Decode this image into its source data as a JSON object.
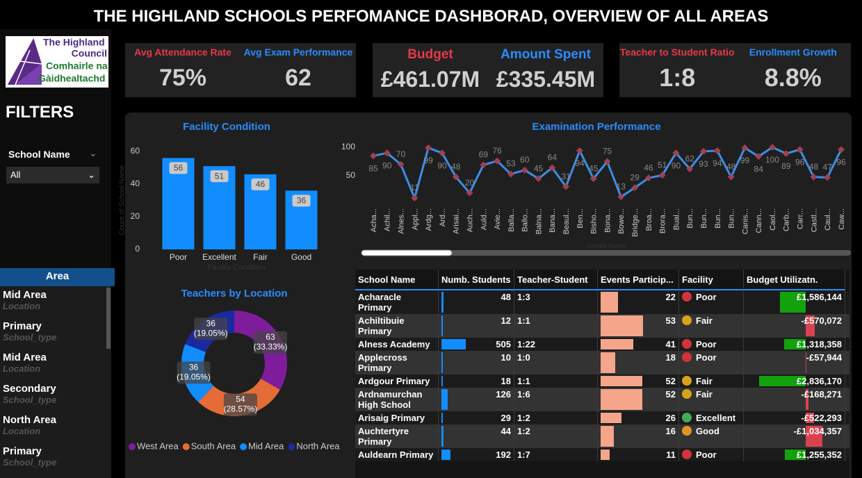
{
  "header": {
    "title": "THE HIGHLAND SCHOOLS PERFOMANCE DASHBORAD, OVERVIEW OF ALL AREAS"
  },
  "logo": {
    "lines": [
      "The Highland",
      "Council",
      "Comhairle na",
      "Gàidhealtachd"
    ]
  },
  "filters": {
    "title": "FILTERS",
    "label": "School Name",
    "value": "All"
  },
  "kpi_panels": [
    [
      {
        "label": "Avg Attendance Rate",
        "value": "75%",
        "color": "#e8394a"
      },
      {
        "label": "Avg Exam Performance",
        "value": "62",
        "color": "#2b8cff"
      }
    ],
    [
      {
        "label": "Budget",
        "value": "£461.07M",
        "color": "#e8394a"
      },
      {
        "label": "Amount Spent",
        "value": "£335.45M",
        "color": "#2b8cff"
      }
    ],
    [
      {
        "label": "Teacher to Student Ratio",
        "value": "1:8",
        "color": "#e8394a"
      },
      {
        "label": "Enrollment Growth",
        "value": "8.8%",
        "color": "#2b8cff"
      }
    ]
  ],
  "area_slicer": {
    "title": "Area",
    "items": [
      {
        "name": "Mid Area",
        "type": "Location"
      },
      {
        "name": "Primary",
        "type": "School_type"
      },
      {
        "name": "Mid Area",
        "type": "Location"
      },
      {
        "name": "Secondary",
        "type": "School_type"
      },
      {
        "name": "North Area",
        "type": "Location"
      },
      {
        "name": "Primary",
        "type": "School_type"
      }
    ]
  },
  "chart_data": [
    {
      "type": "bar",
      "title": "Facility Condition",
      "categories": [
        "Poor",
        "Excellent",
        "Fair",
        "Good"
      ],
      "values": [
        56,
        51,
        46,
        36
      ],
      "color": "#118dff",
      "ylim": [
        0,
        60
      ],
      "yticks": [
        0,
        20,
        40,
        60
      ],
      "x_label": "Facility Condition",
      "y_label": "Count of School Name"
    },
    {
      "type": "line",
      "title": "Examination Performance",
      "categories": [
        "Acha...",
        "Achil...",
        "Alnes...",
        "Appl...",
        "Ardg...",
        "Ard...",
        "Arisai...",
        "Auch...",
        "Auld...",
        "Avie...",
        "Balla...",
        "Ballo...",
        "Balna...",
        "Bana...",
        "Beaul...",
        "Ben...",
        "Bisho...",
        "Bona...",
        "Bowe...",
        "Bridge...",
        "Broa...",
        "Brora...",
        "Bual...",
        "Bun...",
        "Bun...",
        "Bun...",
        "Bun...",
        "Canis...",
        "Cann...",
        "Caol...",
        "Carb...",
        "Carr...",
        "Castl...",
        "Caul...",
        "Caw..."
      ],
      "values": [
        85,
        90,
        70,
        11,
        99,
        90,
        48,
        20,
        69,
        76,
        53,
        60,
        45,
        64,
        31,
        94,
        45,
        75,
        13,
        29,
        46,
        51,
        90,
        62,
        93,
        94,
        48,
        99,
        84,
        100,
        89,
        96,
        48,
        47,
        96
      ],
      "color": "#3b8ee8",
      "marker_color": "#a0404f",
      "ylim": [
        0,
        100
      ],
      "yticks": [
        50,
        100
      ],
      "x_label": "School Name"
    },
    {
      "type": "donut",
      "title": "Teachers by Location",
      "categories": [
        "West Area",
        "South Area",
        "Mid Area",
        "North Area"
      ],
      "values": [
        63,
        54,
        36,
        36
      ],
      "value_labels": [
        "(33.33%)",
        "(28.57%)",
        "(19.05%)",
        "(19.05%)"
      ],
      "colors": [
        "#7f1c9c",
        "#e66c37",
        "#118dff",
        "#1a2a9e"
      ]
    }
  ],
  "table": {
    "columns": [
      "School Name",
      "Numb. Students",
      "Teacher-Student",
      "Events Particip...",
      "Facility",
      "Budget Utilizatn."
    ],
    "rows": [
      {
        "school": "Acharacle Primary",
        "students": 48,
        "ratio": "1:3",
        "events": 22,
        "facility": "Poor",
        "facility_color": "#d13438",
        "budget": {
          "value": 1586144,
          "label": "£1,586,144"
        }
      },
      {
        "school": "Achiltibuie Primary",
        "students": 12,
        "ratio": "1:1",
        "events": 53,
        "facility": "Fair",
        "facility_color": "#d9a21b",
        "budget": {
          "value": -570072,
          "label": "-£570,072"
        }
      },
      {
        "school": "Alness Academy",
        "students": 505,
        "ratio": "1:22",
        "events": 41,
        "facility": "Poor",
        "facility_color": "#d13438",
        "budget": {
          "value": 1318358,
          "label": "£1,318,358"
        }
      },
      {
        "school": "Applecross Primary",
        "students": 10,
        "ratio": "1:0",
        "events": 18,
        "facility": "Poor",
        "facility_color": "#d13438",
        "budget": {
          "value": -57944,
          "label": "-£57,944"
        }
      },
      {
        "school": "Ardgour Primary",
        "students": 18,
        "ratio": "1:1",
        "events": 52,
        "facility": "Fair",
        "facility_color": "#d9a21b",
        "budget": {
          "value": 2836170,
          "label": "£2,836,170"
        }
      },
      {
        "school": "Ardnamurchan High School",
        "students": 126,
        "ratio": "1:6",
        "events": 52,
        "facility": "Fair",
        "facility_color": "#d9a21b",
        "budget": {
          "value": -168271,
          "label": "-£168,271"
        }
      },
      {
        "school": "Arisaig Primary",
        "students": 29,
        "ratio": "1:2",
        "events": 26,
        "facility": "Excellent",
        "facility_color": "#3fae5a",
        "budget": {
          "value": -522293,
          "label": "-£522,293"
        }
      },
      {
        "school": "Auchtertyre Primary",
        "students": 44,
        "ratio": "1:2",
        "events": 16,
        "facility": "Good",
        "facility_color": "#e0952a",
        "budget": {
          "value": -1034357,
          "label": "-£1,034,357"
        }
      },
      {
        "school": "Auldearn Primary",
        "students": 192,
        "ratio": "1:7",
        "events": 11,
        "facility": "Poor",
        "facility_color": "#d13438",
        "budget": {
          "value": 1255352,
          "label": "£1,255,352"
        }
      }
    ]
  }
}
